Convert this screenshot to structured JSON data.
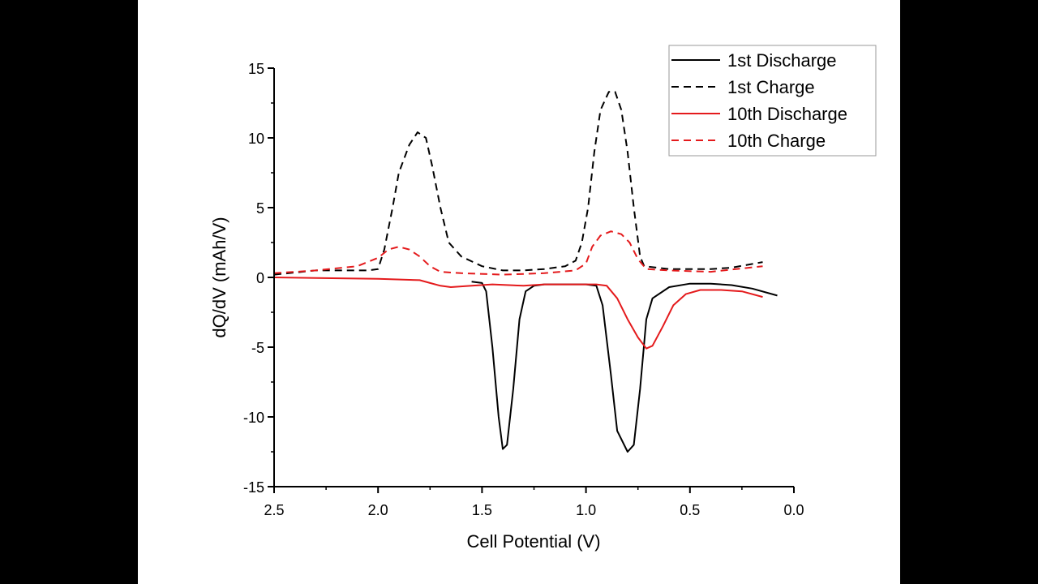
{
  "chart_data": {
    "type": "line",
    "xlabel": "Cell Potential (V)",
    "ylabel": "dQ/dV (mAh/V)",
    "xlim": [
      2.5,
      0.0
    ],
    "ylim": [
      -15,
      15
    ],
    "x_reversed": true,
    "xticks": [
      "2.5",
      "2.0",
      "1.5",
      "1.0",
      "0.5",
      "0.0"
    ],
    "yticks": [
      "15",
      "10",
      "5",
      "0",
      "-5",
      "-10",
      "-15"
    ],
    "grid": false,
    "legend_placement": "top-right",
    "series": [
      {
        "name": "1st Discharge",
        "color": "#000000",
        "dash": "solid",
        "points": [
          [
            1.55,
            -0.3
          ],
          [
            1.5,
            -0.4
          ],
          [
            1.48,
            -1
          ],
          [
            1.45,
            -5
          ],
          [
            1.42,
            -10
          ],
          [
            1.4,
            -12.3
          ],
          [
            1.38,
            -12
          ],
          [
            1.35,
            -8
          ],
          [
            1.32,
            -3
          ],
          [
            1.29,
            -1
          ],
          [
            1.25,
            -0.6
          ],
          [
            1.2,
            -0.5
          ],
          [
            1.0,
            -0.5
          ],
          [
            0.95,
            -0.6
          ],
          [
            0.92,
            -2
          ],
          [
            0.88,
            -7
          ],
          [
            0.85,
            -11
          ],
          [
            0.8,
            -12.5
          ],
          [
            0.77,
            -12
          ],
          [
            0.74,
            -8
          ],
          [
            0.71,
            -3
          ],
          [
            0.68,
            -1.5
          ],
          [
            0.6,
            -0.7
          ],
          [
            0.5,
            -0.45
          ],
          [
            0.4,
            -0.45
          ],
          [
            0.3,
            -0.55
          ],
          [
            0.2,
            -0.8
          ],
          [
            0.08,
            -1.3
          ]
        ]
      },
      {
        "name": "1st Charge",
        "color": "#000000",
        "dash": "dashed",
        "points": [
          [
            2.5,
            0.2
          ],
          [
            2.3,
            0.5
          ],
          [
            2.05,
            0.5
          ],
          [
            2.0,
            0.6
          ],
          [
            1.97,
            2
          ],
          [
            1.93,
            5
          ],
          [
            1.9,
            7.5
          ],
          [
            1.85,
            9.5
          ],
          [
            1.81,
            10.4
          ],
          [
            1.77,
            10
          ],
          [
            1.74,
            8
          ],
          [
            1.7,
            5
          ],
          [
            1.66,
            2.5
          ],
          [
            1.6,
            1.5
          ],
          [
            1.5,
            0.8
          ],
          [
            1.4,
            0.5
          ],
          [
            1.3,
            0.5
          ],
          [
            1.2,
            0.6
          ],
          [
            1.1,
            0.8
          ],
          [
            1.05,
            1.2
          ],
          [
            1.02,
            2.5
          ],
          [
            0.99,
            5
          ],
          [
            0.96,
            9
          ],
          [
            0.93,
            12
          ],
          [
            0.89,
            13.3
          ],
          [
            0.86,
            13.3
          ],
          [
            0.83,
            12
          ],
          [
            0.8,
            9
          ],
          [
            0.77,
            5
          ],
          [
            0.74,
            1.5
          ],
          [
            0.72,
            0.8
          ],
          [
            0.6,
            0.6
          ],
          [
            0.4,
            0.6
          ],
          [
            0.3,
            0.7
          ],
          [
            0.15,
            1.1
          ]
        ]
      },
      {
        "name": "10th Discharge",
        "color": "#e41a1c",
        "dash": "solid",
        "points": [
          [
            2.5,
            0
          ],
          [
            2.0,
            -0.1
          ],
          [
            1.8,
            -0.2
          ],
          [
            1.75,
            -0.4
          ],
          [
            1.7,
            -0.6
          ],
          [
            1.65,
            -0.7
          ],
          [
            1.55,
            -0.6
          ],
          [
            1.45,
            -0.5
          ],
          [
            1.3,
            -0.6
          ],
          [
            1.2,
            -0.5
          ],
          [
            0.95,
            -0.5
          ],
          [
            0.9,
            -0.6
          ],
          [
            0.85,
            -1.5
          ],
          [
            0.8,
            -3
          ],
          [
            0.75,
            -4.3
          ],
          [
            0.71,
            -5.1
          ],
          [
            0.68,
            -4.9
          ],
          [
            0.63,
            -3.5
          ],
          [
            0.58,
            -2
          ],
          [
            0.52,
            -1.2
          ],
          [
            0.45,
            -0.9
          ],
          [
            0.35,
            -0.9
          ],
          [
            0.25,
            -1.0
          ],
          [
            0.15,
            -1.4
          ]
        ]
      },
      {
        "name": "10th Charge",
        "color": "#e41a1c",
        "dash": "dashed",
        "points": [
          [
            2.5,
            0.3
          ],
          [
            2.3,
            0.5
          ],
          [
            2.1,
            0.8
          ],
          [
            2.0,
            1.4
          ],
          [
            1.95,
            2.0
          ],
          [
            1.9,
            2.2
          ],
          [
            1.85,
            2.0
          ],
          [
            1.8,
            1.5
          ],
          [
            1.75,
            0.8
          ],
          [
            1.7,
            0.4
          ],
          [
            1.6,
            0.3
          ],
          [
            1.4,
            0.2
          ],
          [
            1.2,
            0.3
          ],
          [
            1.05,
            0.5
          ],
          [
            1.0,
            1
          ],
          [
            0.97,
            2.2
          ],
          [
            0.93,
            3
          ],
          [
            0.88,
            3.3
          ],
          [
            0.83,
            3.1
          ],
          [
            0.79,
            2.5
          ],
          [
            0.75,
            1.3
          ],
          [
            0.71,
            0.6
          ],
          [
            0.6,
            0.5
          ],
          [
            0.4,
            0.4
          ],
          [
            0.15,
            0.8
          ]
        ]
      }
    ]
  }
}
